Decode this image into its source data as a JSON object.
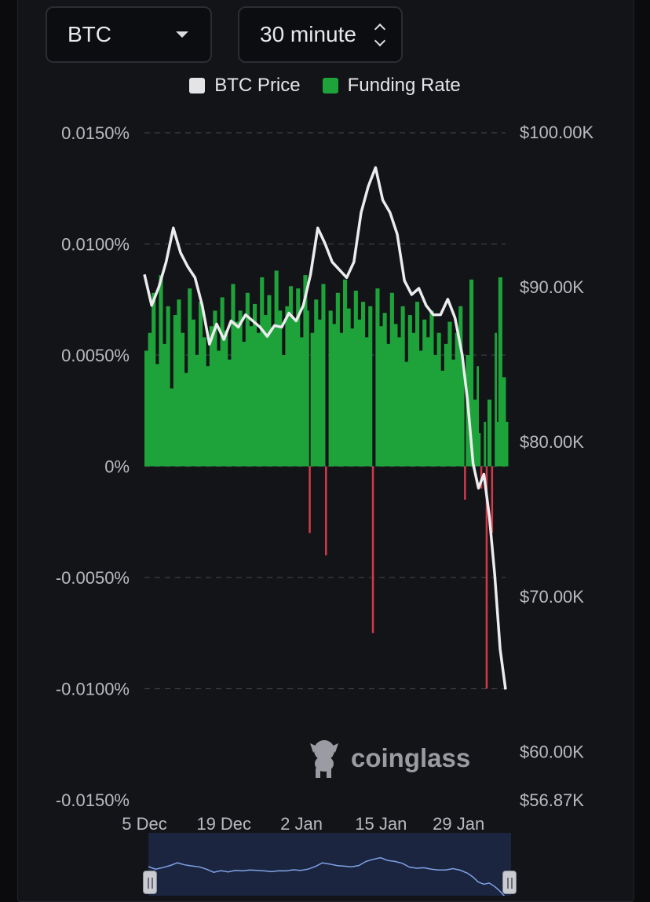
{
  "controls": {
    "coin": "BTC",
    "interval": "30 minute"
  },
  "legend": [
    {
      "label": "BTC Price",
      "color": "#e4e4e7"
    },
    {
      "label": "Funding Rate",
      "color": "#1ea33a"
    }
  ],
  "watermark": "coinglass",
  "colors": {
    "positive": "#1ea33a",
    "negative": "#d23a4a",
    "price": "#ececef",
    "grid": "#3c3e45"
  },
  "chart_data": {
    "type": "bar+line",
    "x_tick_labels": [
      "5 Dec",
      "19 Dec",
      "2 Jan",
      "15 Jan",
      "29 Jan"
    ],
    "y_left": {
      "ticks": [
        "0.0150%",
        "0.0100%",
        "0.0050%",
        "0%",
        "-0.0050%",
        "-0.0100%",
        "-0.0150%"
      ],
      "range": [
        -0.015,
        0.015
      ]
    },
    "y_right": {
      "ticks": [
        "$100.00K",
        "$90.00K",
        "$80.00K",
        "$70.00K",
        "$60.00K",
        "$56.87K"
      ],
      "range": [
        56870,
        100000
      ]
    },
    "grid": "dashed-horizontal",
    "series": [
      {
        "name": "BTC Price",
        "axis": "right",
        "points": [
          [
            0,
            90800
          ],
          [
            0.02,
            88800
          ],
          [
            0.04,
            90000
          ],
          [
            0.06,
            91600
          ],
          [
            0.08,
            93800
          ],
          [
            0.1,
            92200
          ],
          [
            0.12,
            91300
          ],
          [
            0.14,
            90600
          ],
          [
            0.16,
            88800
          ],
          [
            0.18,
            86300
          ],
          [
            0.2,
            87600
          ],
          [
            0.22,
            86600
          ],
          [
            0.24,
            87800
          ],
          [
            0.26,
            87400
          ],
          [
            0.28,
            88200
          ],
          [
            0.3,
            87800
          ],
          [
            0.32,
            87400
          ],
          [
            0.34,
            86800
          ],
          [
            0.36,
            87500
          ],
          [
            0.38,
            87400
          ],
          [
            0.4,
            88300
          ],
          [
            0.42,
            87800
          ],
          [
            0.44,
            88800
          ],
          [
            0.46,
            90800
          ],
          [
            0.48,
            93800
          ],
          [
            0.5,
            92800
          ],
          [
            0.52,
            91600
          ],
          [
            0.54,
            91100
          ],
          [
            0.56,
            90600
          ],
          [
            0.58,
            91600
          ],
          [
            0.6,
            94800
          ],
          [
            0.62,
            96500
          ],
          [
            0.64,
            97700
          ],
          [
            0.66,
            95600
          ],
          [
            0.68,
            94800
          ],
          [
            0.7,
            93400
          ],
          [
            0.72,
            90400
          ],
          [
            0.74,
            89500
          ],
          [
            0.76,
            89900
          ],
          [
            0.78,
            88800
          ],
          [
            0.8,
            88200
          ],
          [
            0.82,
            88200
          ],
          [
            0.84,
            89200
          ],
          [
            0.86,
            88000
          ],
          [
            0.88,
            85600
          ],
          [
            0.895,
            82600
          ],
          [
            0.91,
            78600
          ],
          [
            0.925,
            77000
          ],
          [
            0.94,
            77900
          ],
          [
            0.955,
            75200
          ],
          [
            0.97,
            71400
          ],
          [
            0.985,
            66600
          ],
          [
            1.0,
            64000
          ]
        ]
      },
      {
        "name": "Funding Rate",
        "axis": "left",
        "points": [
          [
            0,
            0.0052
          ],
          [
            0.01,
            0.006
          ],
          [
            0.02,
            0.0078
          ],
          [
            0.03,
            0.0046
          ],
          [
            0.04,
            0.0086
          ],
          [
            0.05,
            0.0055
          ],
          [
            0.06,
            0.0072
          ],
          [
            0.07,
            0.0035
          ],
          [
            0.08,
            0.0068
          ],
          [
            0.09,
            0.0075
          ],
          [
            0.1,
            0.006
          ],
          [
            0.11,
            0.0042
          ],
          [
            0.12,
            0.008
          ],
          [
            0.13,
            0.0066
          ],
          [
            0.14,
            0.005
          ],
          [
            0.15,
            0.0074
          ],
          [
            0.16,
            0.0058
          ],
          [
            0.17,
            0.0045
          ],
          [
            0.18,
            0.0063
          ],
          [
            0.19,
            0.007
          ],
          [
            0.2,
            0.0052
          ],
          [
            0.21,
            0.0076
          ],
          [
            0.22,
            0.0061
          ],
          [
            0.23,
            0.0048
          ],
          [
            0.24,
            0.0082
          ],
          [
            0.25,
            0.0065
          ],
          [
            0.26,
            0.007
          ],
          [
            0.27,
            0.0056
          ],
          [
            0.28,
            0.0078
          ],
          [
            0.29,
            0.0063
          ],
          [
            0.3,
            0.0073
          ],
          [
            0.31,
            0.006
          ],
          [
            0.32,
            0.0085
          ],
          [
            0.33,
            0.0068
          ],
          [
            0.34,
            0.0077
          ],
          [
            0.35,
            0.0062
          ],
          [
            0.36,
            0.0088
          ],
          [
            0.37,
            0.007
          ],
          [
            0.38,
            0.005
          ],
          [
            0.39,
            0.0072
          ],
          [
            0.4,
            0.0081
          ],
          [
            0.41,
            0.0066
          ],
          [
            0.42,
            0.008
          ],
          [
            0.43,
            0.0058
          ],
          [
            0.44,
            0.0086
          ],
          [
            0.45,
            0.007
          ],
          [
            0.455,
            -0.003
          ],
          [
            0.46,
            0.006
          ],
          [
            0.47,
            0.0075
          ],
          [
            0.48,
            0.0066
          ],
          [
            0.49,
            0.0082
          ],
          [
            0.5,
            -0.004
          ],
          [
            0.51,
            0.007
          ],
          [
            0.52,
            0.0064
          ],
          [
            0.53,
            0.0078
          ],
          [
            0.54,
            0.006
          ],
          [
            0.55,
            0.0084
          ],
          [
            0.56,
            0.0071
          ],
          [
            0.57,
            0.0062
          ],
          [
            0.58,
            0.0079
          ],
          [
            0.59,
            0.0066
          ],
          [
            0.6,
            0.0074
          ],
          [
            0.61,
            0.0058
          ],
          [
            0.62,
            0.0072
          ],
          [
            0.63,
            -0.0075
          ],
          [
            0.64,
            0.008
          ],
          [
            0.65,
            0.0063
          ],
          [
            0.66,
            0.0069
          ],
          [
            0.67,
            0.0055
          ],
          [
            0.68,
            0.0078
          ],
          [
            0.69,
            0.0064
          ],
          [
            0.7,
            0.0058
          ],
          [
            0.71,
            0.0072
          ],
          [
            0.72,
            0.0047
          ],
          [
            0.73,
            0.0068
          ],
          [
            0.74,
            0.006
          ],
          [
            0.75,
            0.0074
          ],
          [
            0.76,
            0.0052
          ],
          [
            0.77,
            0.0066
          ],
          [
            0.78,
            0.0058
          ],
          [
            0.79,
            0.007
          ],
          [
            0.8,
            0.005
          ],
          [
            0.81,
            0.006
          ],
          [
            0.82,
            0.0043
          ],
          [
            0.83,
            0.0055
          ],
          [
            0.84,
            0.0065
          ],
          [
            0.85,
            0.0048
          ],
          [
            0.86,
            0.006
          ],
          [
            0.87,
            0.0072
          ],
          [
            0.88,
            0.0045
          ],
          [
            0.885,
            -0.0015
          ],
          [
            0.89,
            0.005
          ],
          [
            0.9,
            0.0084
          ],
          [
            0.91,
            0.003
          ],
          [
            0.92,
            0.0045
          ],
          [
            0.925,
            0.0015
          ],
          [
            0.93,
            -0.001
          ],
          [
            0.94,
            0.002
          ],
          [
            0.945,
            -0.01
          ],
          [
            0.95,
            0.003
          ],
          [
            0.96,
            -0.003
          ],
          [
            0.97,
            0.006
          ],
          [
            0.975,
            0.002
          ],
          [
            0.98,
            0.0085
          ],
          [
            0.99,
            0.004
          ],
          [
            1.0,
            0.002
          ]
        ]
      }
    ]
  }
}
